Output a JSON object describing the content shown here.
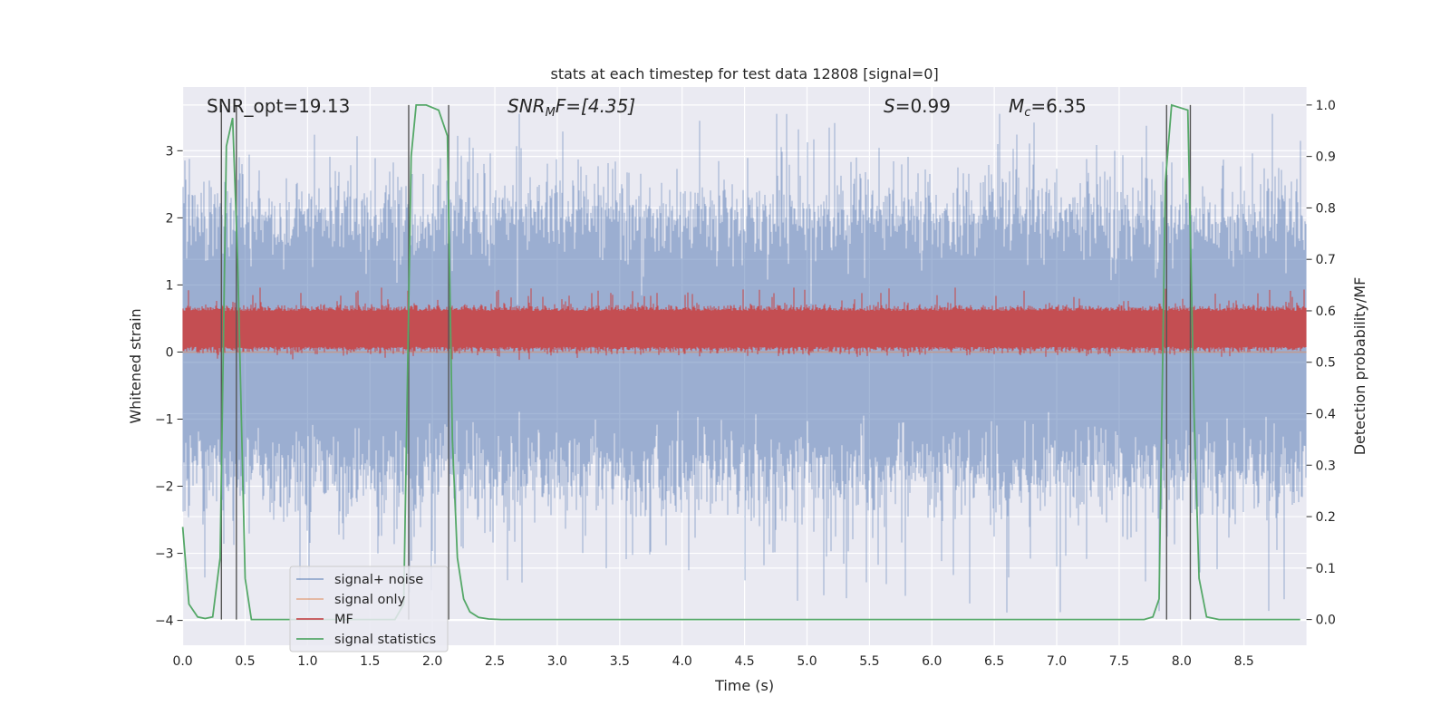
{
  "chart_data": {
    "type": "line",
    "title": "stats at each timestep for test data 12808 [signal=0]",
    "xlabel": "Time (s)",
    "ylabel": "Whitened strain",
    "ylabel_right": "Detection probability/MF",
    "xlim": [
      0.0,
      9.0
    ],
    "ylim": [
      -4.37,
      3.95
    ],
    "ylim_right": [
      -0.05,
      1.035
    ],
    "x_ticks": [
      "0.0",
      "0.5",
      "1.0",
      "1.5",
      "2.0",
      "2.5",
      "3.0",
      "3.5",
      "4.0",
      "4.5",
      "5.0",
      "5.5",
      "6.0",
      "6.5",
      "7.0",
      "7.5",
      "8.0",
      "8.5"
    ],
    "y_ticks": [
      "3",
      "2",
      "1",
      "0",
      "−1",
      "−2",
      "−3",
      "−4"
    ],
    "y_ticks_right": [
      "1.0",
      "0.9",
      "0.8",
      "0.7",
      "0.6",
      "0.5",
      "0.4",
      "0.3",
      "0.2",
      "0.1",
      "0.0"
    ],
    "grid": true,
    "legend_position": "lower-left",
    "annotations": [
      {
        "text": "SNR_opt=19.13"
      },
      {
        "text_parts": [
          "SNR",
          "M",
          "F=[4.35]"
        ]
      },
      {
        "text_parts": [
          "S",
          "=0.99"
        ]
      },
      {
        "text_parts": [
          "M",
          "c",
          "=6.35"
        ]
      }
    ],
    "series": [
      {
        "name": "signal+ noise",
        "color": "#4C72B0",
        "axis": "left",
        "kind": "noise",
        "envelope_y": [
          -1.8,
          2.0
        ],
        "peak_range_y": [
          -4.0,
          3.55
        ]
      },
      {
        "name": "signal only",
        "color": "#DD8452",
        "axis": "left",
        "kind": "flat",
        "y": 0.0
      },
      {
        "name": "MF",
        "color": "#C44E52",
        "axis": "right",
        "kind": "noise",
        "band_y": [
          0.53,
          0.6
        ],
        "peak_y": 0.645
      },
      {
        "name": "signal statistics",
        "color": "#55A868",
        "axis": "right",
        "kind": "line",
        "x": [
          0.0,
          0.05,
          0.12,
          0.18,
          0.24,
          0.3,
          0.35,
          0.4,
          0.44,
          0.5,
          0.55,
          1.7,
          1.77,
          1.83,
          1.87,
          1.95,
          2.05,
          2.12,
          2.16,
          2.2,
          2.25,
          2.3,
          2.37,
          2.45,
          2.55,
          7.7,
          7.77,
          7.82,
          7.87,
          7.92,
          8.05,
          8.1,
          8.14,
          8.2,
          8.3,
          8.95
        ],
        "y": [
          0.18,
          0.03,
          0.005,
          0.002,
          0.005,
          0.12,
          0.92,
          0.975,
          0.7,
          0.08,
          0.0,
          0.0,
          0.03,
          0.9,
          1.0,
          1.0,
          0.99,
          0.94,
          0.35,
          0.12,
          0.04,
          0.015,
          0.004,
          0.001,
          0.0,
          0.0,
          0.005,
          0.04,
          0.85,
          1.0,
          0.99,
          0.4,
          0.08,
          0.005,
          0.0,
          0.0
        ]
      }
    ],
    "vertical_lines_x": [
      0.31,
      0.43,
      1.81,
      2.13,
      7.88,
      8.07
    ]
  }
}
